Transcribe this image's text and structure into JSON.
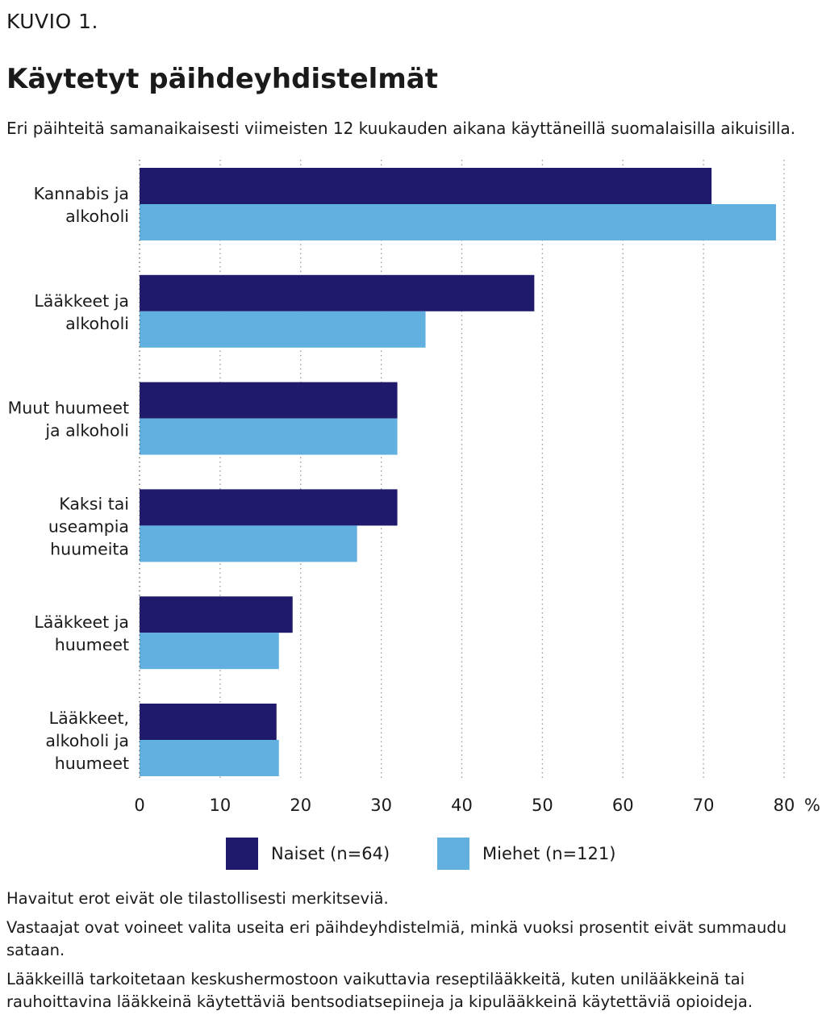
{
  "figure_label": "KUVIO 1.",
  "title": "Käytetyt päihdeyhdistelmät",
  "subtitle": "Eri päihteitä samanaikaisesti viimeisten 12 kuukauden aikana käyttäneillä suomalaisilla aikuisilla.",
  "chart_data": {
    "type": "bar",
    "orientation": "horizontal",
    "categories": [
      [
        "Kannabis ja",
        "alkoholi"
      ],
      [
        "Lääkkeet ja",
        "alkoholi"
      ],
      [
        "Muut huumeet",
        "ja alkoholi"
      ],
      [
        "Kaksi tai",
        "useampia",
        "huumeita"
      ],
      [
        "Lääkkeet ja",
        "huumeet"
      ],
      [
        "Lääkkeet,",
        "alkoholi ja",
        "huumeet"
      ]
    ],
    "series": [
      {
        "name": "Naiset (n=64)",
        "color": "#1f1a6b",
        "values": [
          71,
          49,
          32,
          32,
          19,
          17
        ]
      },
      {
        "name": "Miehet (n=121)",
        "color": "#62b0e0",
        "values": [
          79,
          35.5,
          32,
          27,
          17.3,
          17.3
        ]
      }
    ],
    "xlim": [
      0,
      80
    ],
    "xticks": [
      "0",
      "10",
      "20",
      "30",
      "40",
      "50",
      "60",
      "70",
      "80"
    ],
    "xunit": "%",
    "grid": "vertical dotted",
    "legend_position": "bottom"
  },
  "notes": [
    "Havaitut erot eivät ole tilastollisesti merkitseviä.",
    "Vastaajat ovat voineet valita useita eri päihdeyhdistelmiä, minkä vuoksi prosentit eivät summaudu sataan.",
    "Lääkkeillä tarkoitetaan keskushermostoon vaikuttavia reseptilääkkeitä, kuten unilääkkeinä tai rauhoittavina lääkkeinä käytettäviä bentsodiatsepiineja ja kipulääkkeinä käytettäviä opioideja."
  ]
}
